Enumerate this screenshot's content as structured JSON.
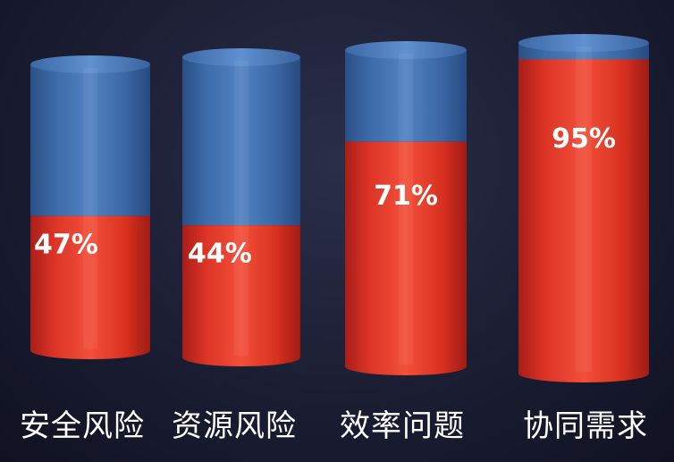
{
  "chart_data": {
    "type": "bar",
    "style": "3d-cylinder-stacked-percent",
    "categories": [
      "安全风险",
      "资源风险",
      "效率问题",
      "协同需求"
    ],
    "values": [
      47,
      44,
      71,
      95
    ],
    "value_labels": [
      "47%",
      "44%",
      "71%",
      "95%"
    ],
    "unit": "%",
    "ylim": [
      0,
      100
    ],
    "title": "",
    "xlabel": "",
    "ylabel": "",
    "grid": false,
    "legend": "none",
    "colors": {
      "value": "#e23a2c",
      "remainder": "#3f6fb0",
      "label": "#ffffff",
      "background": "#1b1e33"
    }
  }
}
